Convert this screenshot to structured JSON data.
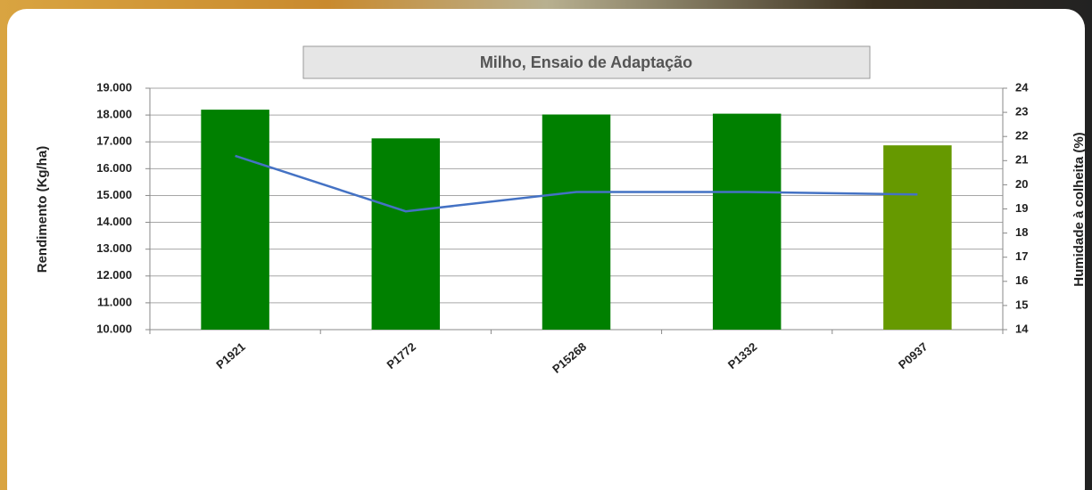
{
  "chart_data": {
    "type": "bar-line",
    "title": "Milho, Ensaio  de Adaptação",
    "y_label": "Rendimento (Kg/ha)",
    "y2_label": "Humidade à colheita (%)",
    "categories": [
      "P1921",
      "P1772",
      "P15268",
      "P1332",
      "P0937"
    ],
    "series": [
      {
        "type": "bar",
        "colors": [
          "#008000",
          "#008000",
          "#008000",
          "#008000",
          "#669900"
        ],
        "values": [
          18200,
          17130,
          18020,
          18050,
          16870
        ]
      },
      {
        "type": "line",
        "axis": "y2",
        "color": "#4472c4",
        "values": [
          21.2,
          18.9,
          19.7,
          19.7,
          19.6
        ]
      }
    ],
    "ylim": [
      10000,
      19000
    ],
    "yticks": [
      {
        "value": 10000,
        "label": "10.000"
      },
      {
        "value": 11000,
        "label": "11.000"
      },
      {
        "value": 12000,
        "label": "12.000"
      },
      {
        "value": 13000,
        "label": "13.000"
      },
      {
        "value": 14000,
        "label": "14.000"
      },
      {
        "value": 15000,
        "label": "15.000"
      },
      {
        "value": 16000,
        "label": "16.000"
      },
      {
        "value": 17000,
        "label": "17.000"
      },
      {
        "value": 18000,
        "label": "18.000"
      },
      {
        "value": 19000,
        "label": "19.000"
      }
    ],
    "y2lim": [
      14,
      24
    ],
    "y2ticks": [
      14,
      15,
      16,
      17,
      18,
      19,
      20,
      21,
      22,
      23,
      24
    ],
    "grid": true
  }
}
